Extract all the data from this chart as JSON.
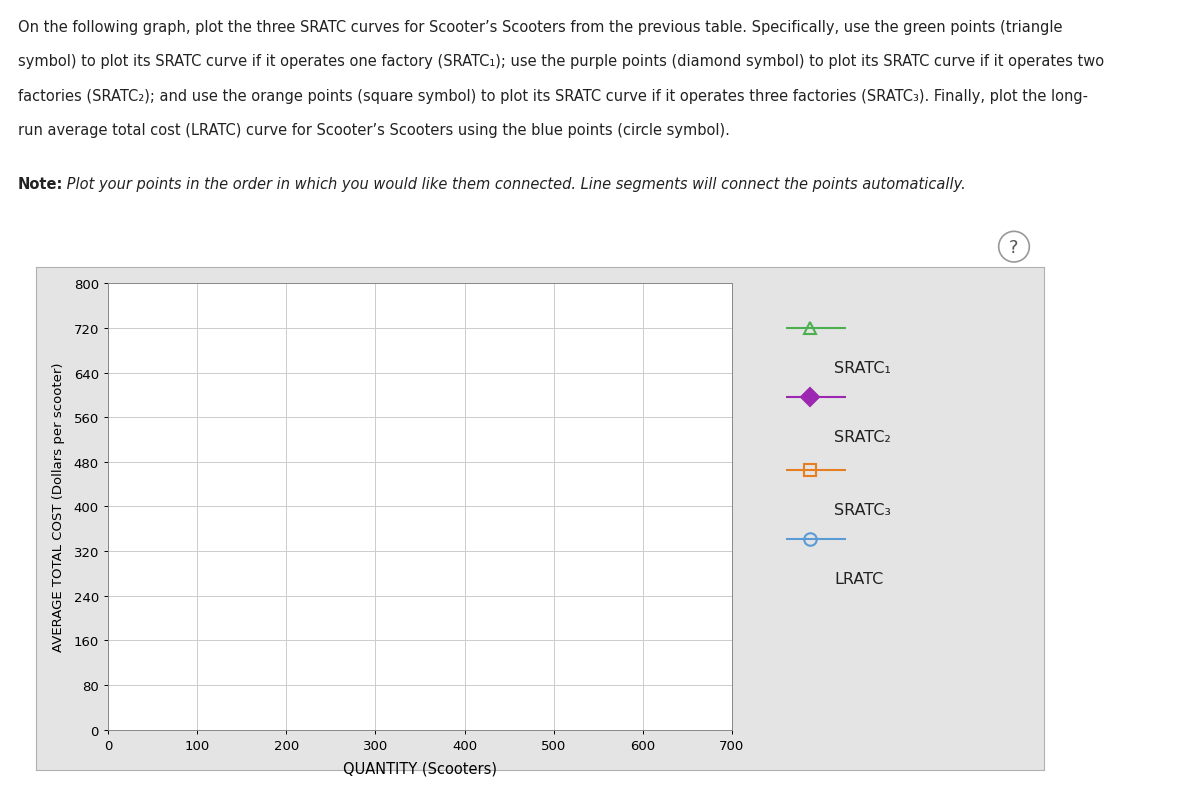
{
  "line1": "On the following graph, plot the three SRATC curves for Scooter’s Scooters from the previous table. Specifically, use the green points (triangle",
  "line2": "symbol) to plot its SRATC curve if it operates one factory (SRATC₁); use the purple points (diamond symbol) to plot its SRATC curve if it operates two",
  "line3": "factories (SRATC₂); and use the orange points (square symbol) to plot its SRATC curve if it operates three factories (SRATC₃). Finally, plot the long-",
  "line4": "run average total cost (LRATC) curve for Scooter’s Scooters using the blue points (circle symbol).",
  "note_bold": "Note:",
  "note_rest": " Plot your points in the order in which you would like them connected. Line segments will connect the points automatically.",
  "ylabel": "AVERAGE TOTAL COST (Dollars per scooter)",
  "xlabel": "QUANTITY (Scooters)",
  "xlim": [
    0,
    700
  ],
  "ylim": [
    0,
    800
  ],
  "xticks": [
    0,
    100,
    200,
    300,
    400,
    500,
    600,
    700
  ],
  "yticks": [
    0,
    80,
    160,
    240,
    320,
    400,
    480,
    560,
    640,
    720,
    800
  ],
  "sratc1_color": "#4caf50",
  "sratc2_color": "#9c27b0",
  "sratc3_color": "#e67e22",
  "lratc_color": "#5b9bd5",
  "legend_labels": [
    "SRATC₁",
    "SRATC₂",
    "SRATC₃",
    "LRATC"
  ],
  "grid_color": "#cccccc",
  "fig_bg_color": "#f0f0f0",
  "panel_bg_color": "#e8e8e8",
  "plot_bg_color": "#ffffff",
  "question_mark": "?"
}
